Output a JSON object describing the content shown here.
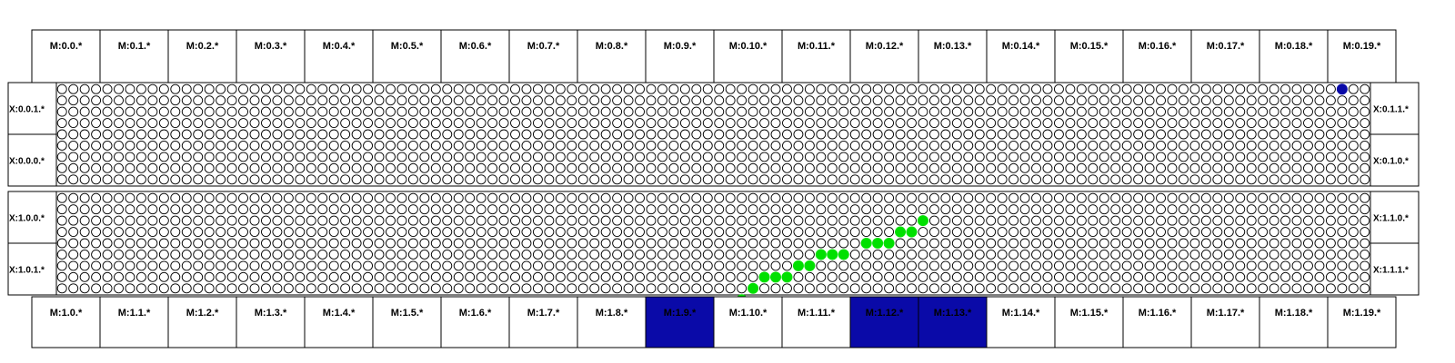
{
  "colors": {
    "background": "#ffffff",
    "outline": "#000000",
    "led_off": "#ffffff",
    "led_green": "#00e000",
    "led_blue": "#0a0aa8",
    "module_highlight": "#0a0aa8"
  },
  "top_modules": [
    "M:0.0.*",
    "M:0.1.*",
    "M:0.2.*",
    "M:0.3.*",
    "M:0.4.*",
    "M:0.5.*",
    "M:0.6.*",
    "M:0.7.*",
    "M:0.8.*",
    "M:0.9.*",
    "M:0.10.*",
    "M:0.11.*",
    "M:0.12.*",
    "M:0.13.*",
    "M:0.14.*",
    "M:0.15.*",
    "M:0.16.*",
    "M:0.17.*",
    "M:0.18.*",
    "M:0.19.*"
  ],
  "bottom_modules": [
    "M:1.0.*",
    "M:1.1.*",
    "M:1.2.*",
    "M:1.3.*",
    "M:1.4.*",
    "M:1.5.*",
    "M:1.6.*",
    "M:1.7.*",
    "M:1.8.*",
    "M:1.9.*",
    "M:1.10.*",
    "M:1.11.*",
    "M:1.12.*",
    "M:1.13.*",
    "M:1.14.*",
    "M:1.15.*",
    "M:1.16.*",
    "M:1.17.*",
    "M:1.18.*",
    "M:1.19.*"
  ],
  "bottom_highlighted": [
    9,
    12,
    13
  ],
  "panels": [
    {
      "left_labels": [
        "X:0.0.1.*",
        "X:0.0.0.*"
      ],
      "right_labels": [
        "X:0.1.1.*",
        "X:0.1.0.*"
      ],
      "lit": [
        [
          0,
          113,
          "blue"
        ]
      ]
    },
    {
      "left_labels": [
        "X:1.0.0.*",
        "X:1.0.1.*"
      ],
      "right_labels": [
        "X:1.1.0.*",
        "X:1.1.1.*"
      ],
      "lit": [
        [
          2,
          76,
          "green"
        ],
        [
          3,
          74,
          "green"
        ],
        [
          3,
          75,
          "green"
        ],
        [
          4,
          71,
          "green"
        ],
        [
          4,
          72,
          "green"
        ],
        [
          4,
          73,
          "green"
        ],
        [
          5,
          67,
          "green"
        ],
        [
          5,
          68,
          "green"
        ],
        [
          5,
          69,
          "green"
        ],
        [
          6,
          65,
          "green"
        ],
        [
          6,
          66,
          "green"
        ],
        [
          7,
          62,
          "green"
        ],
        [
          7,
          63,
          "green"
        ],
        [
          7,
          64,
          "green"
        ],
        [
          8,
          61,
          "green"
        ],
        [
          9,
          60,
          "green"
        ]
      ]
    }
  ]
}
